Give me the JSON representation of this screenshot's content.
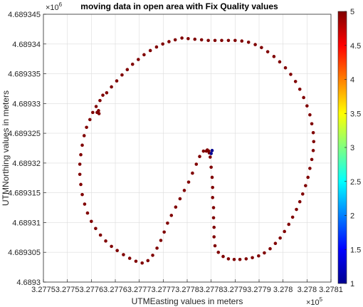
{
  "chart_data": {
    "type": "scatter",
    "title": "moving data in open area with Fix Quality values",
    "xlabel": "UTMEasting values in meters",
    "ylabel": "UTMNorthing values in meters",
    "x_exponent": {
      "base": "×10",
      "power": "5"
    },
    "y_exponent": {
      "base": "×10",
      "power": "6"
    },
    "xlim": [
      327750,
      327810
    ],
    "ylim": [
      4689300,
      4689345
    ],
    "xticks": [
      327750,
      327755,
      327760,
      327765,
      327770,
      327775,
      327780,
      327785,
      327790,
      327795,
      327800,
      327805,
      327810
    ],
    "xtick_labels": [
      "3.2775",
      "3.2775",
      "3.2776",
      "3.2776",
      "3.2777",
      "3.2777",
      "3.2778",
      "3.2778",
      "3.2779",
      "3.2779",
      "3.278",
      "3.278",
      "3.2781"
    ],
    "yticks": [
      4689300,
      4689305,
      4689310,
      4689315,
      4689320,
      4689325,
      4689330,
      4689335,
      4689340,
      4689345
    ],
    "ytick_labels": [
      "4.6893",
      "4.689305",
      "4.68931",
      "4.689315",
      "4.68932",
      "4.689325",
      "4.68933",
      "4.689335",
      "4.68934",
      "4.689345"
    ],
    "colorbar": {
      "range": [
        1,
        5
      ],
      "ticks": [
        1,
        1.5,
        2,
        2.5,
        3,
        3.5,
        4,
        4.5,
        5
      ],
      "tick_labels": [
        "1",
        "1.5",
        "2",
        "2.5",
        "3",
        "3.5",
        "4",
        "4.5",
        "5"
      ],
      "colormap": "jet"
    },
    "marker_color": "#800000",
    "outlier_color": "#00008f",
    "grid": true,
    "series": [
      {
        "fix_quality": 5,
        "points": [
          [
            327784.5,
            4689322.0
          ],
          [
            327784.8,
            4689321.0
          ],
          [
            327785.0,
            4689319.3
          ],
          [
            327785.2,
            4689317.6
          ],
          [
            327785.3,
            4689315.9
          ],
          [
            327785.3,
            4689314.2
          ],
          [
            327785.5,
            4689312.5
          ],
          [
            327785.5,
            4689310.8
          ],
          [
            327785.6,
            4689309.2
          ],
          [
            327785.6,
            4689307.6
          ],
          [
            327785.8,
            4689306.1
          ],
          [
            327786.5,
            4689305.0
          ],
          [
            327787.5,
            4689304.3
          ],
          [
            327788.6,
            4689303.9
          ],
          [
            327789.8,
            4689303.8
          ],
          [
            327791.0,
            4689303.8
          ],
          [
            327792.3,
            4689303.9
          ],
          [
            327793.6,
            4689304.1
          ],
          [
            327794.9,
            4689304.4
          ],
          [
            327796.1,
            4689304.9
          ],
          [
            327797.3,
            4689305.6
          ],
          [
            327798.4,
            4689306.5
          ],
          [
            327799.4,
            4689307.4
          ],
          [
            327800.3,
            4689308.5
          ],
          [
            327801.2,
            4689309.7
          ],
          [
            327802.0,
            4689310.9
          ],
          [
            327802.8,
            4689312.2
          ],
          [
            327803.5,
            4689313.5
          ],
          [
            327804.1,
            4689314.8
          ],
          [
            327804.7,
            4689316.2
          ],
          [
            327805.2,
            4689317.6
          ],
          [
            327805.6,
            4689319.1
          ],
          [
            327806.0,
            4689320.6
          ],
          [
            327806.3,
            4689322.1
          ],
          [
            327806.4,
            4689323.6
          ],
          [
            327806.3,
            4689325.1
          ],
          [
            327806.0,
            4689326.6
          ],
          [
            327805.6,
            4689328.1
          ],
          [
            327805.0,
            4689329.6
          ],
          [
            327804.3,
            4689331.0
          ],
          [
            327803.5,
            4689332.4
          ],
          [
            327802.6,
            4689333.7
          ],
          [
            327801.6,
            4689334.9
          ],
          [
            327800.5,
            4689336.0
          ],
          [
            327799.3,
            4689337.0
          ],
          [
            327798.1,
            4689337.9
          ],
          [
            327796.8,
            4689338.7
          ],
          [
            327795.5,
            4689339.4
          ],
          [
            327794.2,
            4689339.9
          ],
          [
            327792.8,
            4689340.3
          ],
          [
            327791.4,
            4689340.5
          ],
          [
            327790.0,
            4689340.6
          ],
          [
            327788.6,
            4689340.6
          ],
          [
            327787.2,
            4689340.6
          ],
          [
            327785.8,
            4689340.6
          ],
          [
            327784.4,
            4689340.6
          ],
          [
            327783.0,
            4689340.7
          ],
          [
            327781.6,
            4689340.8
          ],
          [
            327780.2,
            4689340.9
          ],
          [
            327778.9,
            4689341.0
          ],
          [
            327777.5,
            4689340.7
          ],
          [
            327776.2,
            4689340.4
          ],
          [
            327774.9,
            4689340.0
          ],
          [
            327773.6,
            4689339.5
          ],
          [
            327772.3,
            4689338.9
          ],
          [
            327771.0,
            4689338.2
          ],
          [
            327769.8,
            4689337.4
          ],
          [
            327768.6,
            4689336.6
          ],
          [
            327767.5,
            4689335.7
          ],
          [
            327766.4,
            4689334.8
          ],
          [
            327765.3,
            4689333.8
          ],
          [
            327764.2,
            4689332.8
          ],
          [
            327763.2,
            4689331.8
          ],
          [
            327762.4,
            4689331.4
          ],
          [
            327761.8,
            4689330.5
          ],
          [
            327761.0,
            4689329.5
          ],
          [
            327760.3,
            4689328.5
          ],
          [
            327759.7,
            4689327.3
          ],
          [
            327759.0,
            4689326.0
          ],
          [
            327758.5,
            4689324.6
          ],
          [
            327758.1,
            4689323.0
          ],
          [
            327757.8,
            4689321.4
          ],
          [
            327757.6,
            4689319.8
          ],
          [
            327757.6,
            4689318.1
          ],
          [
            327757.8,
            4689316.4
          ],
          [
            327758.1,
            4689314.7
          ],
          [
            327758.6,
            4689313.1
          ],
          [
            327759.2,
            4689311.6
          ],
          [
            327760.0,
            4689310.2
          ],
          [
            327760.9,
            4689309.0
          ],
          [
            327761.9,
            4689307.9
          ],
          [
            327763.0,
            4689306.9
          ],
          [
            327764.2,
            4689306.0
          ],
          [
            327765.4,
            4689305.3
          ],
          [
            327766.7,
            4689304.6
          ],
          [
            327768.0,
            4689304.0
          ],
          [
            327769.3,
            4689303.5
          ],
          [
            327770.6,
            4689303.2
          ],
          [
            327771.8,
            4689303.6
          ],
          [
            327772.8,
            4689304.5
          ],
          [
            327773.7,
            4689305.7
          ],
          [
            327774.5,
            4689307.0
          ],
          [
            327775.2,
            4689308.4
          ],
          [
            327775.9,
            4689309.9
          ],
          [
            327776.7,
            4689311.2
          ],
          [
            327777.6,
            4689312.6
          ],
          [
            327778.5,
            4689314.0
          ],
          [
            327779.4,
            4689315.4
          ],
          [
            327780.3,
            4689316.8
          ],
          [
            327781.1,
            4689318.3
          ],
          [
            327781.9,
            4689319.8
          ],
          [
            327782.6,
            4689321.1
          ],
          [
            327783.4,
            4689322.0
          ],
          [
            327784.0,
            4689322.0
          ],
          [
            327784.2,
            4689322.2
          ],
          [
            327784.6,
            4689321.7
          ],
          [
            327761.5,
            4689328.8
          ],
          [
            327761.2,
            4689328.5
          ],
          [
            327761.6,
            4689328.3
          ]
        ]
      },
      {
        "fix_quality": 1,
        "points": [
          [
            327785.2,
            4689322.1
          ],
          [
            327785.0,
            4689321.6
          ]
        ]
      }
    ]
  }
}
